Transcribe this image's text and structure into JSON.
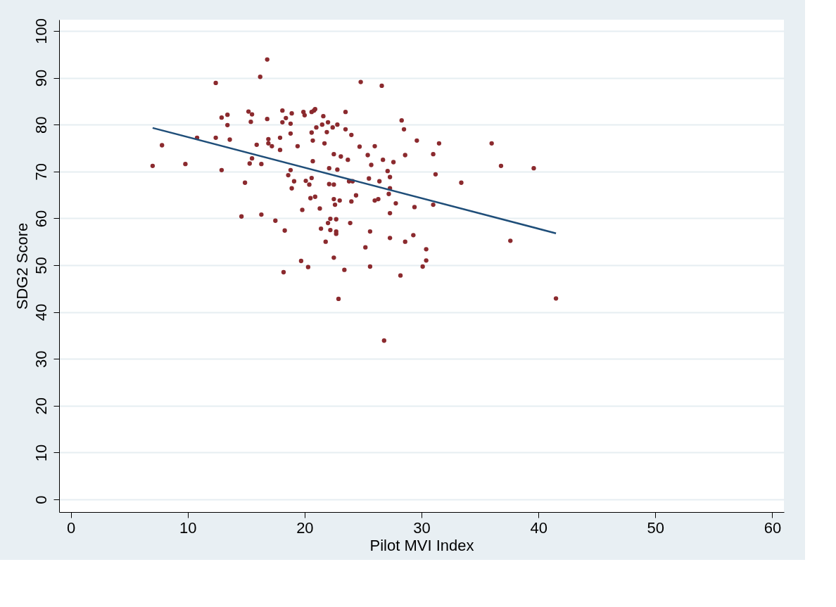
{
  "chart_data": {
    "type": "scatter",
    "xlabel": "Pilot MVI Index",
    "ylabel": "SDG2 Score",
    "xlim": [
      -1,
      61
    ],
    "ylim": [
      -2.7,
      102.4
    ],
    "xticks": [
      0,
      10,
      20,
      30,
      40,
      50,
      60
    ],
    "yticks": [
      0,
      10,
      20,
      30,
      40,
      50,
      60,
      70,
      80,
      90,
      100
    ],
    "grid": "y",
    "series": [
      {
        "marker": "circle",
        "color": "#8b2a2e",
        "x": [
          7.0,
          7.8,
          9.8,
          10.8,
          12.4,
          12.4,
          12.9,
          12.9,
          13.4,
          13.4,
          13.6,
          14.6,
          14.9,
          15.2,
          15.3,
          15.4,
          15.5,
          15.5,
          15.9,
          16.2,
          16.3,
          16.3,
          16.8,
          16.8,
          16.9,
          16.9,
          17.2,
          17.5,
          17.9,
          17.9,
          18.1,
          18.1,
          18.2,
          18.3,
          18.4,
          18.6,
          18.8,
          18.8,
          18.9,
          18.8,
          18.9,
          19.1,
          19.4,
          19.8,
          19.7,
          19.9,
          20.0,
          20.1,
          20.3,
          20.4,
          20.5,
          20.6,
          20.6,
          20.6,
          20.7,
          20.7,
          20.8,
          20.9,
          20.9,
          21.0,
          21.3,
          21.4,
          21.5,
          21.6,
          21.7,
          21.8,
          21.9,
          22.0,
          22.0,
          22.1,
          22.1,
          22.2,
          22.2,
          22.4,
          22.5,
          22.5,
          22.5,
          22.5,
          22.6,
          22.7,
          22.7,
          22.7,
          22.8,
          22.8,
          22.9,
          23.0,
          23.1,
          23.4,
          23.5,
          23.5,
          23.7,
          23.8,
          23.9,
          24.0,
          24.0,
          24.1,
          24.4,
          24.7,
          24.8,
          25.2,
          25.4,
          25.5,
          25.6,
          25.6,
          25.7,
          26.0,
          26.0,
          26.3,
          26.4,
          26.6,
          26.7,
          26.8,
          27.1,
          27.3,
          27.3,
          27.2,
          27.3,
          27.3,
          27.6,
          27.8,
          28.3,
          28.2,
          28.5,
          28.6,
          28.6,
          29.3,
          29.4,
          29.6,
          30.1,
          30.4,
          30.4,
          31.0,
          31.0,
          31.2,
          31.5,
          33.4,
          36.0,
          36.8,
          37.6,
          39.6,
          41.5
        ],
        "values": [
          71.2,
          75.6,
          71.6,
          77.2,
          88.9,
          77.2,
          81.5,
          70.3,
          82.1,
          79.9,
          76.8,
          60.4,
          67.6,
          82.8,
          71.7,
          80.6,
          82.2,
          72.8,
          75.7,
          90.2,
          71.6,
          60.8,
          93.9,
          81.2,
          76.9,
          76.0,
          75.4,
          59.5,
          74.6,
          77.2,
          83.0,
          80.5,
          48.5,
          57.4,
          81.4,
          69.2,
          78.1,
          80.2,
          82.4,
          70.3,
          66.4,
          67.9,
          75.4,
          61.8,
          50.9,
          82.7,
          82.0,
          68.0,
          49.6,
          67.2,
          64.3,
          82.7,
          68.6,
          78.3,
          72.2,
          76.6,
          83.0,
          83.3,
          64.6,
          79.4,
          62.1,
          57.8,
          80.0,
          81.8,
          76.0,
          55.0,
          78.4,
          59.0,
          80.5,
          70.7,
          67.3,
          57.5,
          59.9,
          79.4,
          51.6,
          73.7,
          64.1,
          67.2,
          62.9,
          59.8,
          57.2,
          56.7,
          80.0,
          70.4,
          42.8,
          63.8,
          73.2,
          49.0,
          82.7,
          79.0,
          72.5,
          67.9,
          59.0,
          63.6,
          77.8,
          67.9,
          64.9,
          75.3,
          89.1,
          53.8,
          73.5,
          68.5,
          57.2,
          49.7,
          71.4,
          75.4,
          63.8,
          64.1,
          67.9,
          88.3,
          72.5,
          33.9,
          70.1,
          68.8,
          66.4,
          65.2,
          55.8,
          61.1,
          72.0,
          63.2,
          80.9,
          47.8,
          79.0,
          55.0,
          73.5,
          56.4,
          62.4,
          76.6,
          49.7,
          51.0,
          53.4,
          62.9,
          73.7,
          69.4,
          76.0,
          67.6,
          76.0,
          71.2,
          55.2,
          70.7,
          42.9
        ]
      },
      {
        "type": "line",
        "color": "#1f4e79",
        "line_style": "solid",
        "x": [
          7.0,
          41.5
        ],
        "values": [
          79.3,
          56.8
        ]
      }
    ]
  }
}
